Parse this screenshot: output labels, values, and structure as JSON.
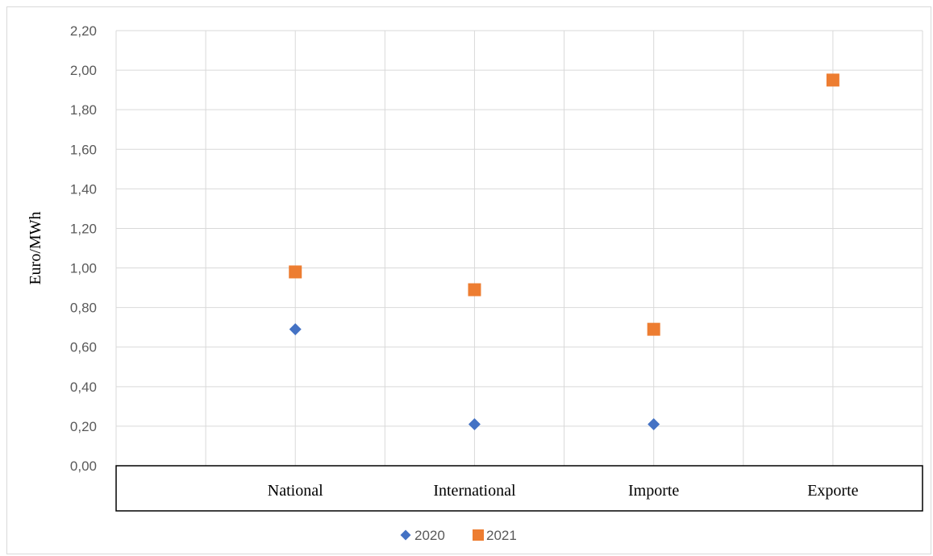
{
  "chart_data": {
    "type": "scatter",
    "title": "",
    "xlabel": "",
    "ylabel": "Euro/MWh",
    "categories": [
      "National",
      "International",
      "Importe",
      "Exporte"
    ],
    "ylim": [
      0,
      2.2
    ],
    "y_ticks": [
      "0,00",
      "0,20",
      "0,40",
      "0,60",
      "0,80",
      "1,00",
      "1,20",
      "1,40",
      "1,60",
      "1,80",
      "2,00",
      "2,20"
    ],
    "grid": true,
    "legend_position": "bottom",
    "series": [
      {
        "name": "2020",
        "marker": "diamond",
        "color": "#4472C4",
        "values": [
          0.69,
          0.21,
          0.21,
          null
        ]
      },
      {
        "name": "2021",
        "marker": "square",
        "color": "#ED7D31",
        "values": [
          0.98,
          0.89,
          0.69,
          1.95
        ]
      }
    ]
  }
}
